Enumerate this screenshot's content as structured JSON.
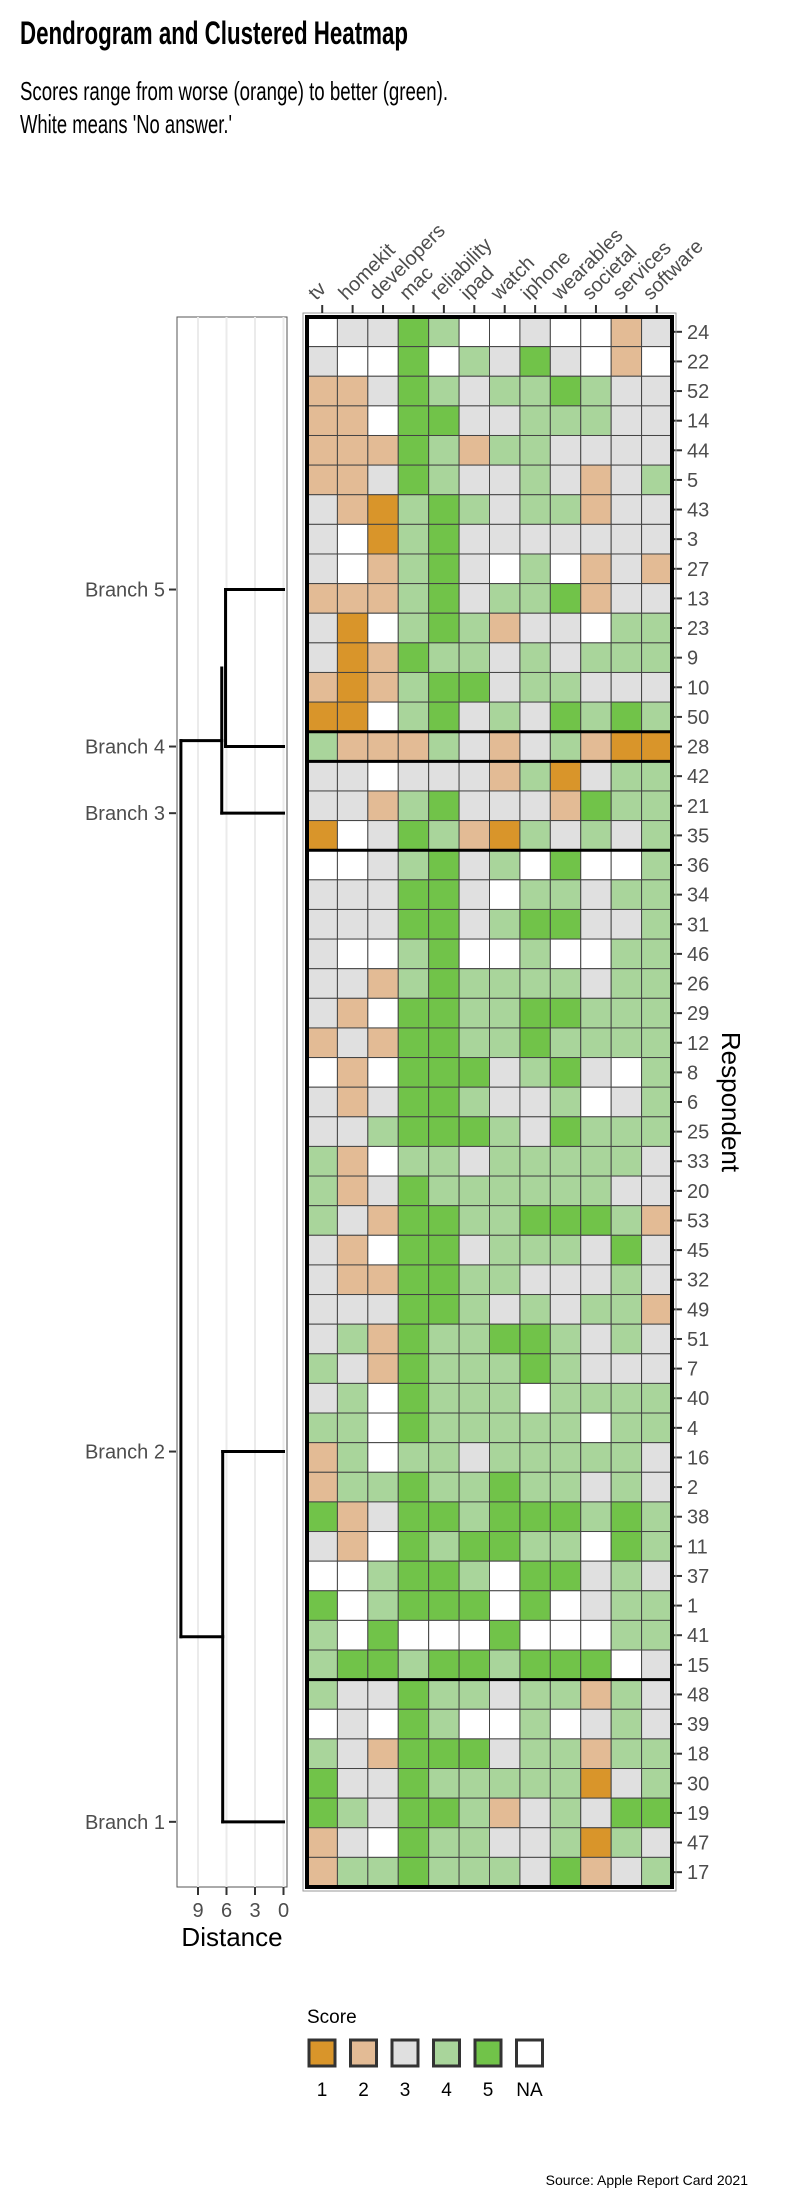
{
  "title": "Dendrogram and Clustered Heatmap",
  "subtitle_lines": [
    "Scores range from worse (orange) to better (green).",
    "White means 'No answer.'"
  ],
  "source": "Source: Apple Report Card 2021",
  "chart_data": {
    "type": "heatmap",
    "columns": [
      "tv",
      "homekit",
      "developers",
      "mac",
      "reliability",
      "ipad",
      "watch",
      "iphone",
      "wearables",
      "societal",
      "services",
      "software"
    ],
    "ylabel": "Respondent",
    "rows": [
      {
        "id": "24",
        "scores": [
          null,
          3,
          3,
          5,
          4,
          null,
          null,
          3,
          null,
          null,
          2,
          3
        ]
      },
      {
        "id": "22",
        "scores": [
          3,
          null,
          null,
          5,
          null,
          4,
          3,
          5,
          3,
          null,
          2,
          null
        ]
      },
      {
        "id": "52",
        "scores": [
          2,
          2,
          3,
          5,
          4,
          3,
          4,
          4,
          5,
          4,
          3,
          3
        ]
      },
      {
        "id": "14",
        "scores": [
          2,
          2,
          null,
          5,
          5,
          3,
          3,
          4,
          4,
          4,
          3,
          3
        ]
      },
      {
        "id": "44",
        "scores": [
          2,
          2,
          2,
          5,
          4,
          2,
          4,
          4,
          3,
          3,
          3,
          3
        ]
      },
      {
        "id": "5",
        "scores": [
          2,
          2,
          3,
          5,
          4,
          3,
          3,
          4,
          3,
          2,
          3,
          4
        ]
      },
      {
        "id": "43",
        "scores": [
          3,
          2,
          1,
          4,
          5,
          4,
          3,
          4,
          4,
          2,
          3,
          3
        ]
      },
      {
        "id": "3",
        "scores": [
          3,
          null,
          1,
          4,
          5,
          3,
          3,
          3,
          3,
          3,
          3,
          3
        ]
      },
      {
        "id": "27",
        "scores": [
          3,
          null,
          2,
          4,
          5,
          3,
          null,
          4,
          null,
          2,
          3,
          2
        ]
      },
      {
        "id": "13",
        "scores": [
          2,
          2,
          2,
          4,
          5,
          3,
          4,
          4,
          5,
          2,
          3,
          3
        ]
      },
      {
        "id": "23",
        "scores": [
          3,
          1,
          null,
          4,
          5,
          4,
          2,
          3,
          3,
          null,
          4,
          4
        ]
      },
      {
        "id": "9",
        "scores": [
          3,
          1,
          2,
          5,
          4,
          4,
          3,
          4,
          3,
          4,
          4,
          4
        ]
      },
      {
        "id": "10",
        "scores": [
          2,
          1,
          2,
          4,
          5,
          5,
          3,
          4,
          4,
          3,
          3,
          3
        ]
      },
      {
        "id": "50",
        "scores": [
          1,
          1,
          null,
          4,
          5,
          3,
          4,
          3,
          5,
          4,
          5,
          4
        ]
      },
      {
        "id": "28",
        "scores": [
          4,
          2,
          2,
          2,
          4,
          3,
          2,
          3,
          4,
          2,
          1,
          1
        ]
      },
      {
        "id": "42",
        "scores": [
          3,
          3,
          null,
          3,
          3,
          3,
          2,
          4,
          1,
          3,
          4,
          4
        ]
      },
      {
        "id": "21",
        "scores": [
          3,
          3,
          2,
          4,
          5,
          3,
          3,
          3,
          2,
          5,
          4,
          4
        ]
      },
      {
        "id": "35",
        "scores": [
          1,
          null,
          3,
          5,
          4,
          2,
          1,
          4,
          3,
          4,
          3,
          4
        ]
      },
      {
        "id": "36",
        "scores": [
          null,
          null,
          3,
          4,
          5,
          3,
          4,
          null,
          5,
          null,
          null,
          4
        ]
      },
      {
        "id": "34",
        "scores": [
          3,
          3,
          3,
          5,
          5,
          3,
          null,
          4,
          4,
          3,
          4,
          4
        ]
      },
      {
        "id": "31",
        "scores": [
          3,
          3,
          3,
          5,
          5,
          3,
          4,
          5,
          5,
          3,
          3,
          4
        ]
      },
      {
        "id": "46",
        "scores": [
          3,
          null,
          null,
          4,
          5,
          null,
          null,
          4,
          null,
          null,
          4,
          4
        ]
      },
      {
        "id": "26",
        "scores": [
          3,
          3,
          2,
          4,
          5,
          4,
          4,
          4,
          4,
          3,
          4,
          4
        ]
      },
      {
        "id": "29",
        "scores": [
          3,
          2,
          null,
          5,
          5,
          4,
          4,
          5,
          5,
          4,
          4,
          4
        ]
      },
      {
        "id": "12",
        "scores": [
          2,
          3,
          2,
          5,
          5,
          4,
          4,
          5,
          4,
          4,
          4,
          4
        ]
      },
      {
        "id": "8",
        "scores": [
          null,
          2,
          null,
          5,
          5,
          5,
          3,
          4,
          5,
          3,
          null,
          4
        ]
      },
      {
        "id": "6",
        "scores": [
          3,
          2,
          3,
          5,
          5,
          4,
          3,
          3,
          4,
          null,
          3,
          4
        ]
      },
      {
        "id": "25",
        "scores": [
          3,
          3,
          4,
          5,
          5,
          5,
          4,
          3,
          5,
          4,
          4,
          4
        ]
      },
      {
        "id": "33",
        "scores": [
          4,
          2,
          null,
          4,
          4,
          3,
          4,
          4,
          4,
          4,
          4,
          3
        ]
      },
      {
        "id": "20",
        "scores": [
          4,
          2,
          3,
          5,
          4,
          4,
          4,
          4,
          4,
          4,
          3,
          3
        ]
      },
      {
        "id": "53",
        "scores": [
          4,
          3,
          2,
          5,
          5,
          4,
          4,
          5,
          5,
          5,
          4,
          2
        ]
      },
      {
        "id": "45",
        "scores": [
          3,
          2,
          null,
          5,
          5,
          3,
          4,
          4,
          4,
          3,
          5,
          3
        ]
      },
      {
        "id": "32",
        "scores": [
          3,
          2,
          2,
          5,
          5,
          4,
          4,
          3,
          3,
          3,
          4,
          3
        ]
      },
      {
        "id": "49",
        "scores": [
          3,
          3,
          3,
          5,
          5,
          4,
          3,
          4,
          3,
          4,
          4,
          2
        ]
      },
      {
        "id": "51",
        "scores": [
          3,
          4,
          2,
          5,
          4,
          4,
          5,
          5,
          4,
          3,
          4,
          3
        ]
      },
      {
        "id": "7",
        "scores": [
          4,
          3,
          2,
          5,
          4,
          4,
          4,
          5,
          4,
          3,
          3,
          3
        ]
      },
      {
        "id": "40",
        "scores": [
          3,
          4,
          null,
          5,
          4,
          4,
          4,
          null,
          4,
          4,
          4,
          4
        ]
      },
      {
        "id": "4",
        "scores": [
          4,
          4,
          null,
          5,
          4,
          4,
          4,
          4,
          4,
          null,
          4,
          4
        ]
      },
      {
        "id": "16",
        "scores": [
          2,
          4,
          null,
          4,
          4,
          3,
          4,
          4,
          4,
          4,
          4,
          3
        ]
      },
      {
        "id": "2",
        "scores": [
          2,
          4,
          4,
          5,
          4,
          4,
          5,
          4,
          4,
          3,
          4,
          3
        ]
      },
      {
        "id": "38",
        "scores": [
          5,
          2,
          3,
          5,
          5,
          4,
          5,
          5,
          5,
          4,
          5,
          4
        ]
      },
      {
        "id": "11",
        "scores": [
          3,
          2,
          null,
          5,
          4,
          5,
          5,
          4,
          4,
          null,
          5,
          4
        ]
      },
      {
        "id": "37",
        "scores": [
          null,
          null,
          4,
          5,
          5,
          4,
          null,
          5,
          5,
          3,
          4,
          3
        ]
      },
      {
        "id": "1",
        "scores": [
          5,
          null,
          4,
          5,
          5,
          5,
          null,
          5,
          null,
          3,
          4,
          4
        ]
      },
      {
        "id": "41",
        "scores": [
          4,
          null,
          5,
          null,
          null,
          null,
          5,
          null,
          null,
          null,
          4,
          4
        ]
      },
      {
        "id": "15",
        "scores": [
          4,
          5,
          5,
          4,
          5,
          5,
          4,
          5,
          5,
          5,
          null,
          3
        ]
      },
      {
        "id": "48",
        "scores": [
          4,
          3,
          3,
          5,
          4,
          4,
          3,
          4,
          4,
          2,
          4,
          3
        ]
      },
      {
        "id": "39",
        "scores": [
          null,
          3,
          null,
          5,
          4,
          null,
          null,
          4,
          null,
          3,
          4,
          3
        ]
      },
      {
        "id": "18",
        "scores": [
          4,
          3,
          2,
          5,
          5,
          5,
          3,
          4,
          4,
          2,
          4,
          4
        ]
      },
      {
        "id": "30",
        "scores": [
          5,
          3,
          3,
          5,
          4,
          4,
          4,
          4,
          4,
          1,
          3,
          4
        ]
      },
      {
        "id": "19",
        "scores": [
          5,
          4,
          3,
          5,
          5,
          4,
          2,
          3,
          4,
          3,
          5,
          5
        ]
      },
      {
        "id": "47",
        "scores": [
          2,
          3,
          null,
          5,
          4,
          4,
          3,
          3,
          4,
          1,
          4,
          3
        ]
      },
      {
        "id": "17",
        "scores": [
          2,
          4,
          4,
          5,
          4,
          4,
          4,
          3,
          5,
          2,
          3,
          4
        ]
      }
    ],
    "clusters": [
      {
        "name": "Branch 5",
        "rows": 14
      },
      {
        "name": "Branch 4",
        "rows": 1
      },
      {
        "name": "Branch 3",
        "rows": 3
      },
      {
        "name": "Branch 2",
        "rows": 28
      },
      {
        "name": "Branch 1",
        "rows": 7
      }
    ],
    "dendrogram": {
      "xlabel": "Distance",
      "xticks": [
        9,
        6,
        3,
        0
      ],
      "xlim": [
        11.1,
        0
      ],
      "merges": [
        {
          "join": [
            "Branch 5",
            "Branch 4"
          ],
          "height": 6.1
        },
        {
          "join": [
            "Branch 5+4",
            "Branch 3"
          ],
          "height": 6.5
        },
        {
          "join": [
            "Branch 2",
            "Branch 1"
          ],
          "height": 6.4
        },
        {
          "join": [
            "Branch 5+4+3",
            "Branch 2+1"
          ],
          "height": 10.8
        }
      ]
    },
    "legend": {
      "title": "Score",
      "entries": [
        {
          "label": "1",
          "value": 1,
          "color": "#d9952a"
        },
        {
          "label": "2",
          "value": 2,
          "color": "#e3bb95"
        },
        {
          "label": "3",
          "value": 3,
          "color": "#e0e0e0"
        },
        {
          "label": "4",
          "value": 4,
          "color": "#a9d59b"
        },
        {
          "label": "5",
          "value": 5,
          "color": "#71c349"
        },
        {
          "label": "NA",
          "value": null,
          "color": "#ffffff"
        }
      ]
    }
  }
}
